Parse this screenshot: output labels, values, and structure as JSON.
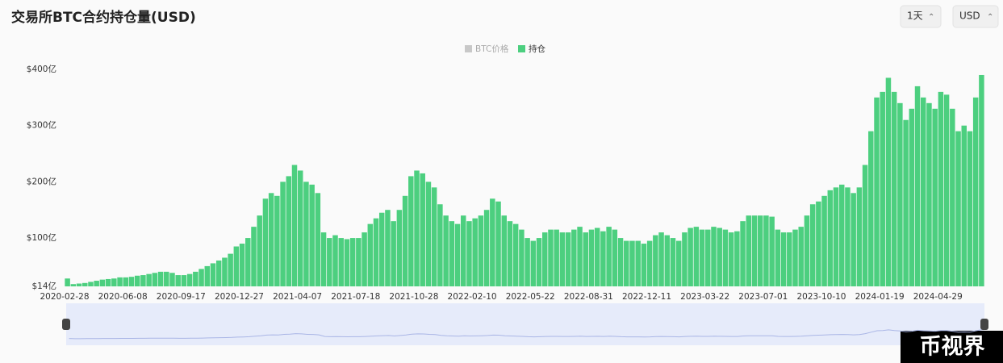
{
  "chart_data": {
    "type": "bar",
    "title": "交易所BTC合约持仓量(USD)",
    "controls": [
      "1天",
      "USD"
    ],
    "inactive_legend": {
      "name": "BTC价格",
      "color": "#c8c8c8"
    },
    "watermark": "币视界",
    "categories": [
      "2020-02-28",
      null,
      null,
      null,
      null,
      null,
      null,
      null,
      null,
      null,
      "2020-06-08",
      null,
      null,
      null,
      null,
      null,
      null,
      null,
      null,
      null,
      "2020-09-17",
      null,
      null,
      null,
      null,
      null,
      null,
      null,
      null,
      null,
      "2020-12-27",
      null,
      null,
      null,
      null,
      null,
      null,
      null,
      null,
      null,
      "2021-04-07",
      null,
      null,
      null,
      null,
      null,
      null,
      null,
      null,
      null,
      "2021-07-18",
      null,
      null,
      null,
      null,
      null,
      null,
      null,
      null,
      null,
      "2021-10-28",
      null,
      null,
      null,
      null,
      null,
      null,
      null,
      null,
      null,
      "2022-02-10",
      null,
      null,
      null,
      null,
      null,
      null,
      null,
      null,
      null,
      "2022-05-22",
      null,
      null,
      null,
      null,
      null,
      null,
      null,
      null,
      null,
      "2022-08-31",
      null,
      null,
      null,
      null,
      null,
      null,
      null,
      null,
      null,
      "2022-12-11",
      null,
      null,
      null,
      null,
      null,
      null,
      null,
      null,
      null,
      "2023-03-22",
      null,
      null,
      null,
      null,
      null,
      null,
      null,
      null,
      null,
      "2023-07-01",
      null,
      null,
      null,
      null,
      null,
      null,
      null,
      null,
      null,
      "2023-10-10",
      null,
      null,
      null,
      null,
      null,
      null,
      null,
      null,
      null,
      "2024-01-19",
      null,
      null,
      null,
      null,
      null,
      null,
      null,
      null,
      null,
      "2024-04-29",
      null,
      null,
      null,
      null,
      null,
      null,
      null
    ],
    "series": [
      {
        "name": "持仓",
        "color": "#4ccf7f",
        "values": [
          28,
          18,
          19,
          20,
          22,
          24,
          26,
          27,
          28,
          30,
          30,
          31,
          33,
          34,
          36,
          38,
          40,
          40,
          38,
          34,
          34,
          36,
          40,
          45,
          50,
          55,
          60,
          65,
          72,
          85,
          90,
          100,
          120,
          140,
          170,
          180,
          175,
          200,
          210,
          230,
          220,
          200,
          195,
          180,
          110,
          100,
          105,
          100,
          98,
          100,
          100,
          110,
          125,
          135,
          145,
          150,
          130,
          150,
          175,
          210,
          220,
          215,
          200,
          190,
          160,
          140,
          130,
          125,
          140,
          130,
          135,
          140,
          150,
          170,
          165,
          140,
          130,
          125,
          115,
          100,
          95,
          100,
          110,
          115,
          115,
          110,
          110,
          115,
          120,
          110,
          115,
          118,
          112,
          120,
          115,
          100,
          95,
          95,
          95,
          90,
          95,
          105,
          110,
          105,
          100,
          95,
          110,
          118,
          120,
          115,
          115,
          120,
          118,
          115,
          110,
          112,
          130,
          140,
          140,
          140,
          140,
          138,
          115,
          110,
          110,
          115,
          120,
          140,
          160,
          165,
          175,
          185,
          190,
          195,
          190,
          180,
          190,
          230,
          290,
          350,
          360,
          385,
          360,
          340,
          310,
          330,
          370,
          350,
          340,
          330,
          360,
          355,
          330,
          290,
          300,
          290,
          350,
          390
        ]
      }
    ],
    "ylim": [
      14,
      400
    ],
    "yticks": [
      {
        "value": 14,
        "label": "$14亿"
      },
      {
        "value": 100,
        "label": "$100亿"
      },
      {
        "value": 200,
        "label": "$200亿"
      },
      {
        "value": 300,
        "label": "$300亿"
      },
      {
        "value": 400,
        "label": "$400亿"
      }
    ],
    "grid": false
  }
}
